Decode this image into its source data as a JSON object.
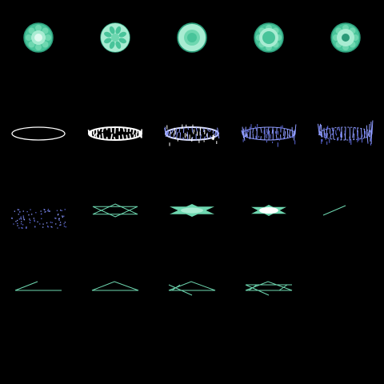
{
  "background": "#000000",
  "palette": {
    "mint_light": "#a8ecd2",
    "mint": "#6ed7b0",
    "mint_mid": "#48c49a",
    "mint_dark": "#2a9a78",
    "white": "#ffffff",
    "periwinkle": "#8f9cff",
    "periwinkle_dark": "#5c68d8"
  },
  "rows": [
    {
      "name": "gem-row",
      "frames": [
        {
          "kind": "gem",
          "variant": "glow-center"
        },
        {
          "kind": "gem",
          "variant": "petal-flower"
        },
        {
          "kind": "gem",
          "variant": "light-ring"
        },
        {
          "kind": "gem",
          "variant": "inner-ring"
        },
        {
          "kind": "gem",
          "variant": "dark-core"
        }
      ]
    },
    {
      "name": "ring-row",
      "frames": [
        {
          "kind": "ellipse-outline"
        },
        {
          "kind": "spiky-ellipse",
          "stage": 1
        },
        {
          "kind": "spiky-ellipse",
          "stage": 2
        },
        {
          "kind": "spiky-ellipse",
          "stage": 3
        },
        {
          "kind": "spiky-ellipse",
          "stage": 4
        }
      ]
    },
    {
      "name": "star-row",
      "frames": [
        {
          "kind": "dust-cloud"
        },
        {
          "kind": "hexagram",
          "variant": "outline"
        },
        {
          "kind": "hexagram",
          "variant": "filled"
        },
        {
          "kind": "hexagram",
          "variant": "small-filled"
        },
        {
          "kind": "line-stroke",
          "variant": "single"
        }
      ]
    },
    {
      "name": "triangle-row",
      "frames": [
        {
          "kind": "triangle-build",
          "stage": 1
        },
        {
          "kind": "triangle-build",
          "stage": 2
        },
        {
          "kind": "triangle-build",
          "stage": 3
        },
        {
          "kind": "triangle-build",
          "stage": 4
        }
      ]
    }
  ]
}
